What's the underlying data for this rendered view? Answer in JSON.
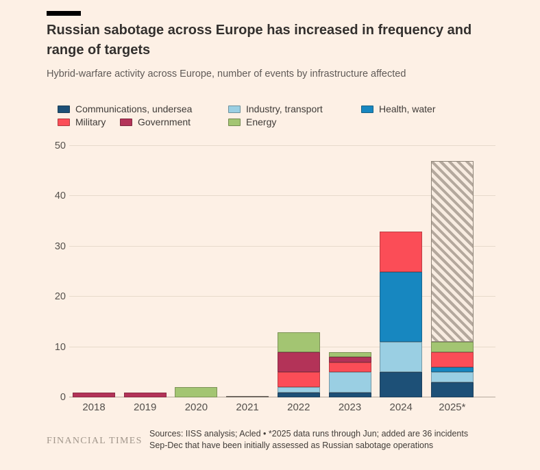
{
  "header": {
    "title": "Russian sabotage across Europe has increased in frequency and range of targets",
    "subtitle": "Hybrid-warfare activity across Europe, number of events by infrastructure affected"
  },
  "legend": {
    "items": [
      {
        "label": "Communications, undersea",
        "color": "#1d5077"
      },
      {
        "label": "Industry, transport",
        "color": "#9acfe3"
      },
      {
        "label": "Health, water",
        "color": "#1787c0"
      },
      {
        "label": "Military",
        "color": "#fb4d57"
      },
      {
        "label": "Government",
        "color": "#b33358"
      },
      {
        "label": "Energy",
        "color": "#a3c572"
      }
    ]
  },
  "chart_data": {
    "type": "bar",
    "stacked": true,
    "title": "Russian sabotage across Europe has increased in frequency and range of targets",
    "subtitle": "Hybrid-warfare activity across Europe, number of events by infrastructure affected",
    "categories": [
      "2018",
      "2019",
      "2020",
      "2021",
      "2022",
      "2023",
      "2024",
      "2025*"
    ],
    "series": [
      {
        "name": "Communications, undersea",
        "color": "#1d5077",
        "values": [
          0,
          0,
          0,
          0,
          1,
          1,
          5,
          3
        ]
      },
      {
        "name": "Industry, transport",
        "color": "#9acfe3",
        "values": [
          0,
          0,
          0,
          0,
          1,
          4,
          6,
          2
        ]
      },
      {
        "name": "Health, water",
        "color": "#1787c0",
        "values": [
          0,
          0,
          0,
          0,
          0,
          0,
          14,
          1
        ]
      },
      {
        "name": "Military",
        "color": "#fb4d57",
        "values": [
          0,
          0,
          0,
          0,
          3,
          2,
          8,
          3
        ]
      },
      {
        "name": "Government",
        "color": "#b33358",
        "values": [
          1,
          1,
          0,
          0,
          4,
          1,
          0,
          0
        ]
      },
      {
        "name": "Energy",
        "color": "#a3c572",
        "values": [
          0,
          0,
          2,
          0,
          4,
          1,
          0,
          2
        ]
      }
    ],
    "hatched_extra": {
      "note": "*2025 added incidents Sep-Dec, initially assessed",
      "values": [
        0,
        0,
        0,
        0,
        0,
        0,
        0,
        36
      ]
    },
    "totals": [
      1,
      1,
      2,
      0,
      13,
      9,
      33,
      47
    ],
    "ylim": [
      0,
      50
    ],
    "yticks": [
      0,
      10,
      20,
      30,
      40,
      50
    ],
    "grid": "horizontal",
    "legend_position": "top"
  },
  "footer": {
    "brand": "FINANCIAL TIMES",
    "source_line1": "Sources: IISS analysis; Acled • *2025 data runs through Jun; added are 36 incidents",
    "source_line2": "Sep-Dec that have been initially assessed as Russian sabotage operations"
  }
}
